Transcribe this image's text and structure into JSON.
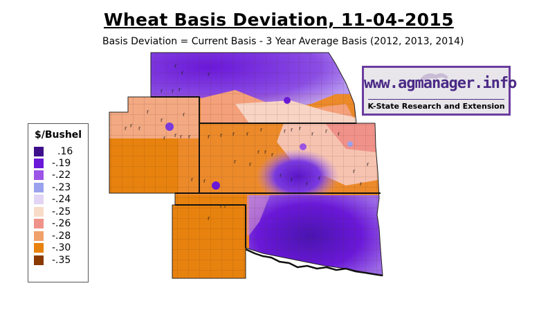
{
  "title": "Wheat Basis Deviation, 11-04-2015",
  "subtitle": "Basis Deviation = Current Basis - 3 Year Average Basis (2012, 2013, 2014)",
  "legend": {
    "title": "$/Bushel",
    "items": [
      {
        "label": ".16",
        "color": "#3d0f8a"
      },
      {
        "label": "-.19",
        "color": "#6a18d8"
      },
      {
        "label": "-.22",
        "color": "#9c55e6"
      },
      {
        "label": "-.23",
        "color": "#9aa2ee"
      },
      {
        "label": "-.24",
        "color": "#e2d4f4"
      },
      {
        "label": "-.25",
        "color": "#f8dcc8"
      },
      {
        "label": "-.26",
        "color": "#f0928a"
      },
      {
        "label": "-.28",
        "color": "#f0a06a"
      },
      {
        "label": "-.30",
        "color": "#e8820e"
      },
      {
        "label": "-.35",
        "color": "#8a3a00"
      }
    ]
  },
  "brand": {
    "site": "www.agmanager.info",
    "org": "K-State Research and Extension"
  }
}
